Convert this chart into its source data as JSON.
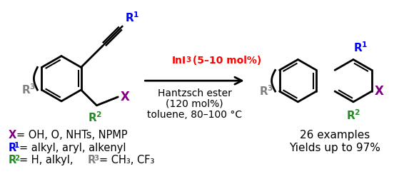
{
  "background_color": "#ffffff",
  "colors": {
    "purple": "#800080",
    "blue": "#0000ff",
    "green": "#228B22",
    "red": "#ff0000",
    "gray": "#808080",
    "black": "#000000"
  },
  "conditions": {
    "ini3_text": "InI",
    "ini3_sub": "3",
    "ini3_rest": " (5–10 mol%)",
    "line2": "Hantzsch ester",
    "line3": "(120 mol%)",
    "line4": "toluene, 80–100 °C"
  },
  "right_text": {
    "line1": "26 examples",
    "line2": "Yields up to 97%"
  }
}
